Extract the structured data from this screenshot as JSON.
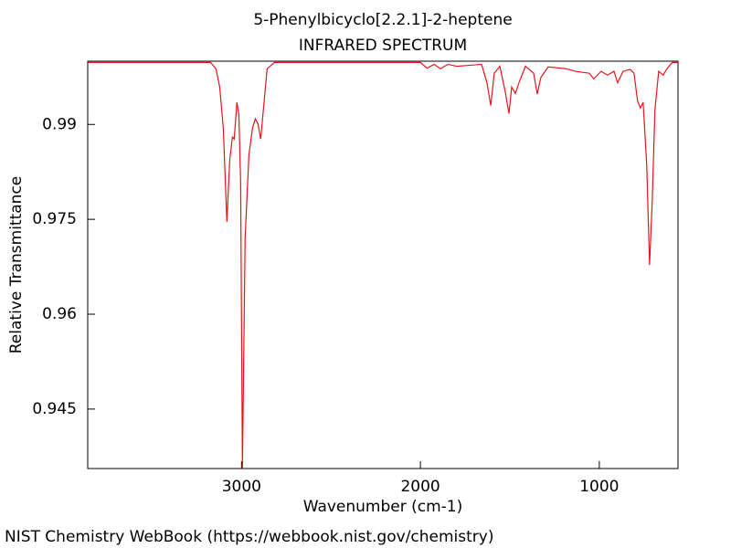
{
  "chart_data": {
    "type": "line",
    "title": "5-Phenylbicyclo[2.2.1]-2-heptene",
    "subtitle": "INFRARED SPECTRUM",
    "x_label": "Wavenumber (cm-1)",
    "y_label": "Relative Transmittance",
    "source": "NIST Chemistry WebBook (https://webbook.nist.gov/chemistry)",
    "x": [
      3857,
      3173,
      3143,
      3122,
      3102,
      3082,
      3066,
      3051,
      3041,
      3026,
      3015,
      3005,
      2995,
      2980,
      2959,
      2939,
      2923,
      2908,
      2893,
      2878,
      2857,
      2816,
      2000,
      1964,
      1923,
      1888,
      1847,
      1796,
      1658,
      1628,
      1607,
      1587,
      1556,
      1526,
      1505,
      1490,
      1469,
      1449,
      1413,
      1367,
      1347,
      1327,
      1286,
      1184,
      1133,
      1056,
      1031,
      990,
      954,
      918,
      898,
      867,
      827,
      806,
      786,
      770,
      755,
      735,
      719,
      704,
      689,
      668,
      643,
      622,
      592,
      561
    ],
    "series": [
      {
        "color": "#e8141c",
        "values": [
          0.9998,
          0.9998,
          0.9988,
          0.9959,
          0.9894,
          0.9746,
          0.9844,
          0.988,
          0.9877,
          0.9935,
          0.9916,
          0.9808,
          0.9356,
          0.9721,
          0.9851,
          0.9894,
          0.9909,
          0.9901,
          0.9877,
          0.9923,
          0.9988,
          0.9998,
          0.9998,
          0.9989,
          0.9995,
          0.9988,
          0.9995,
          0.9992,
          0.9995,
          0.9966,
          0.993,
          0.9981,
          0.9992,
          0.9952,
          0.9917,
          0.9959,
          0.9949,
          0.9966,
          0.9992,
          0.9981,
          0.9948,
          0.9974,
          0.9991,
          0.9988,
          0.9984,
          0.9981,
          0.9972,
          0.9984,
          0.9978,
          0.9984,
          0.9966,
          0.9984,
          0.9987,
          0.9981,
          0.9937,
          0.9926,
          0.9935,
          0.9837,
          0.9678,
          0.9779,
          0.9923,
          0.9984,
          0.9978,
          0.9988,
          0.9998,
          0.9998
        ]
      }
    ],
    "xlim": [
      3860,
      560
    ],
    "xticks": [
      3000,
      2000,
      1000
    ],
    "ylim": [
      0.9356,
      1.0
    ],
    "yticks": [
      0.945,
      0.96,
      0.975,
      0.99
    ]
  }
}
